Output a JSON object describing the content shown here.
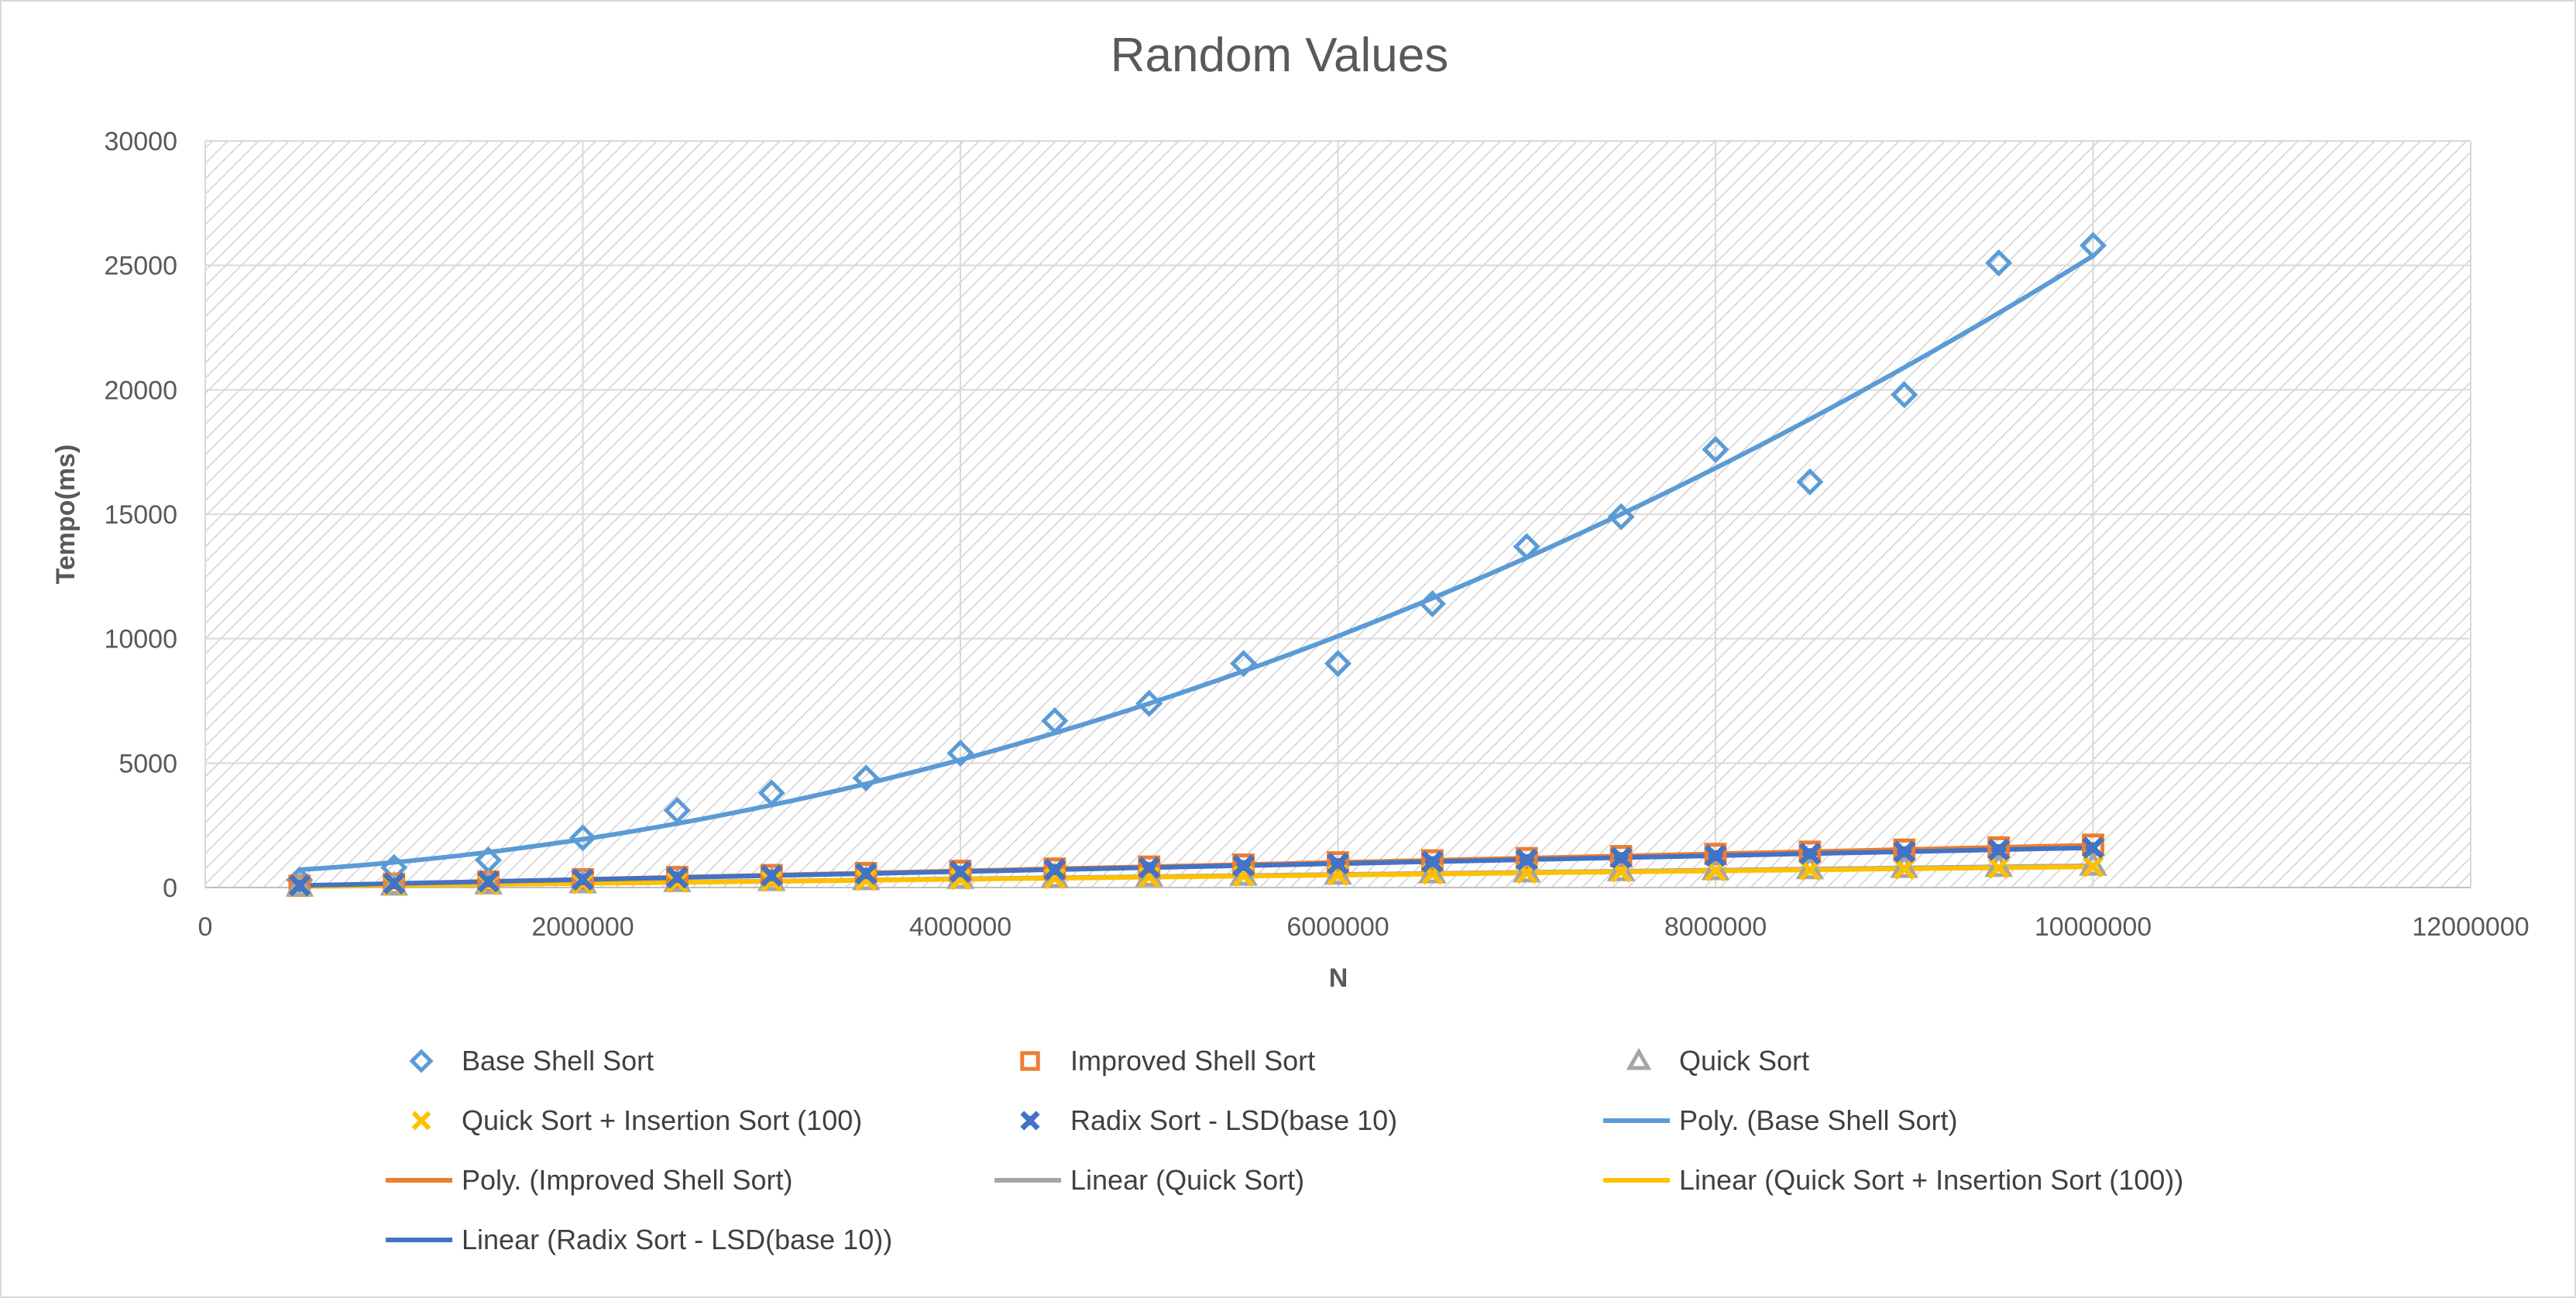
{
  "chart_data": {
    "type": "scatter",
    "title": "Random Values",
    "xlabel": "N",
    "ylabel": "Tempo(ms)",
    "xlim": [
      0,
      12000000
    ],
    "ylim": [
      0,
      30000
    ],
    "xticks": [
      0,
      2000000,
      4000000,
      6000000,
      8000000,
      10000000,
      12000000
    ],
    "yticks": [
      0,
      5000,
      10000,
      15000,
      20000,
      25000,
      30000
    ],
    "x_tick_labels": [
      "0",
      "2000000",
      "4000000",
      "6000000",
      "8000000",
      "10000000",
      "12000000"
    ],
    "y_tick_labels": [
      "0",
      "5000",
      "10000",
      "15000",
      "20000",
      "25000",
      "30000"
    ],
    "grid": true,
    "legend_position": "bottom",
    "x": [
      500000,
      1000000,
      1500000,
      2000000,
      2500000,
      3000000,
      3500000,
      4000000,
      4500000,
      5000000,
      5500000,
      6000000,
      6500000,
      7000000,
      7500000,
      8000000,
      8500000,
      9000000,
      9500000,
      10000000
    ],
    "series": [
      {
        "name": "Base Shell Sort",
        "marker": "diamond",
        "color": "#5B9BD5",
        "values": [
          300,
          800,
          1100,
          2000,
          3100,
          3800,
          4400,
          5400,
          6700,
          7400,
          9000,
          9000,
          11400,
          13700,
          14900,
          17600,
          16300,
          19800,
          25100,
          25800
        ]
      },
      {
        "name": "Improved Shell Sort",
        "marker": "square",
        "color": "#ED7D31",
        "values": [
          70,
          150,
          240,
          330,
          420,
          500,
          580,
          670,
          760,
          840,
          920,
          1010,
          1090,
          1180,
          1260,
          1350,
          1440,
          1520,
          1610,
          1720
        ]
      },
      {
        "name": "Quick Sort",
        "marker": "triangle",
        "color": "#A5A5A5",
        "values": [
          40,
          80,
          130,
          170,
          220,
          260,
          300,
          350,
          390,
          440,
          480,
          520,
          570,
          610,
          660,
          700,
          740,
          790,
          830,
          880
        ]
      },
      {
        "name": "Quick Sort + Insertion Sort (100)",
        "marker": "x",
        "color": "#FFC000",
        "values": [
          40,
          80,
          120,
          160,
          210,
          250,
          290,
          330,
          370,
          420,
          460,
          500,
          540,
          580,
          630,
          670,
          710,
          750,
          790,
          840
        ]
      },
      {
        "name": "Radix Sort - LSD(base 10)",
        "marker": "star",
        "color": "#4472C4",
        "values": [
          80,
          160,
          240,
          320,
          400,
          480,
          560,
          640,
          720,
          800,
          880,
          960,
          1040,
          1120,
          1200,
          1280,
          1360,
          1440,
          1520,
          1600
        ]
      }
    ],
    "trendlines": [
      {
        "name": "Poly. (Base Shell Sort)",
        "kind": "poly2",
        "of": "Base Shell Sort",
        "color": "#5B9BD5"
      },
      {
        "name": "Poly. (Improved Shell Sort)",
        "kind": "poly2",
        "of": "Improved Shell Sort",
        "color": "#ED7D31"
      },
      {
        "name": "Linear (Quick Sort)",
        "kind": "linear",
        "of": "Quick Sort",
        "color": "#A5A5A5"
      },
      {
        "name": "Linear (Quick Sort + Insertion Sort (100))",
        "kind": "linear",
        "of": "Quick Sort + Insertion Sort (100)",
        "color": "#FFC000"
      },
      {
        "name": "Linear (Radix Sort - LSD(base 10))",
        "kind": "linear",
        "of": "Radix Sort - LSD(base 10)",
        "color": "#4472C4"
      }
    ],
    "legend": [
      {
        "label": "Base Shell Sort",
        "kind": "marker",
        "marker": "diamond",
        "color": "#5B9BD5"
      },
      {
        "label": "Improved Shell Sort",
        "kind": "marker",
        "marker": "square",
        "color": "#ED7D31"
      },
      {
        "label": "Quick Sort",
        "kind": "marker",
        "marker": "triangle",
        "color": "#A5A5A5"
      },
      {
        "label": "Quick Sort + Insertion Sort (100)",
        "kind": "marker",
        "marker": "x",
        "color": "#FFC000"
      },
      {
        "label": "Radix Sort - LSD(base 10)",
        "kind": "marker",
        "marker": "star",
        "color": "#4472C4"
      },
      {
        "label": "Poly. (Base Shell Sort)",
        "kind": "line",
        "color": "#5B9BD5"
      },
      {
        "label": "Poly. (Improved Shell Sort)",
        "kind": "line",
        "color": "#ED7D31"
      },
      {
        "label": "Linear (Quick Sort)",
        "kind": "line",
        "color": "#A5A5A5"
      },
      {
        "label": "Linear (Quick Sort + Insertion Sort (100))",
        "kind": "line",
        "color": "#FFC000"
      },
      {
        "label": "Linear (Radix Sort - LSD(base 10))",
        "kind": "line",
        "color": "#4472C4"
      }
    ]
  }
}
